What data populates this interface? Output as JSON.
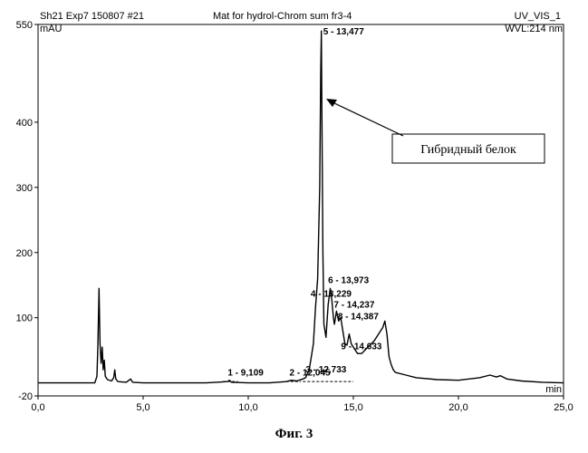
{
  "header": {
    "left": "Sh21 Exp7 150807 #21",
    "center": "Mat for hydrol-Chrom sum fr3-4",
    "right": "UV_VIS_1",
    "right2": "WVL:214 nm"
  },
  "caption": "Фиг. 3",
  "chart_data": {
    "type": "line",
    "ylabel": "mAU",
    "xlabel": "min",
    "xlim": [
      0,
      25
    ],
    "ylim": [
      -20,
      550
    ],
    "x_ticks": [
      0,
      5,
      10,
      15,
      20,
      25
    ],
    "x_tick_labels": [
      "0,0",
      "5,0",
      "10,0",
      "15,0",
      "20,0",
      "25,0"
    ],
    "y_ticks": [
      -20,
      100,
      200,
      300,
      400,
      550
    ],
    "y_tick_labels": [
      "-20",
      "100",
      "200",
      "300",
      "400",
      "550"
    ],
    "series": [
      {
        "x": [
          0,
          2.7,
          2.8,
          2.85,
          2.9,
          2.95,
          3.0,
          3.05,
          3.1,
          3.15,
          3.2,
          3.3,
          3.5,
          3.6,
          3.65,
          3.7,
          3.8,
          4.2,
          4.4,
          4.5,
          5.0,
          6.0,
          7.0,
          8.0,
          8.5,
          9.0,
          9.11,
          9.2,
          10.0,
          11.0,
          11.8,
          12.05,
          12.3,
          12.6,
          12.73,
          12.9,
          13.1,
          13.2,
          13.3,
          13.4,
          13.45,
          13.477,
          13.5,
          13.55,
          13.6,
          13.7,
          13.8,
          13.9,
          13.973,
          14.05,
          14.1,
          14.2,
          14.3,
          14.4,
          14.5,
          14.6,
          14.7,
          14.8,
          14.9,
          15.0,
          15.2,
          15.4,
          15.6,
          15.8,
          16.0,
          16.2,
          16.4,
          16.5,
          16.6,
          16.7,
          16.8,
          16.9,
          17.0,
          17.5,
          18.0,
          19.0,
          20.0,
          21.0,
          21.5,
          21.8,
          22.0,
          22.3,
          23.0,
          24.0,
          25.0
        ],
        "y": [
          0,
          0,
          10,
          60,
          145,
          60,
          30,
          55,
          20,
          35,
          10,
          5,
          3,
          8,
          20,
          6,
          2,
          1,
          6,
          1,
          0,
          0,
          0,
          0,
          1,
          2,
          4,
          1,
          0,
          0,
          2,
          4,
          3,
          6,
          8,
          20,
          60,
          115,
          160,
          300,
          480,
          540,
          430,
          200,
          90,
          70,
          120,
          145,
          128,
          100,
          90,
          110,
          95,
          100,
          80,
          60,
          58,
          75,
          60,
          55,
          45,
          45,
          52,
          58,
          65,
          75,
          85,
          95,
          75,
          40,
          28,
          20,
          16,
          12,
          8,
          5,
          4,
          8,
          12,
          9,
          11,
          6,
          3,
          1,
          0
        ]
      }
    ],
    "peak_labels": [
      {
        "text": "1 - 9,109",
        "x": 9.11,
        "y": 4
      },
      {
        "text": "2 - 12,045",
        "x": 12.05,
        "y": 4
      },
      {
        "text": "3 - 12,733",
        "x": 12.73,
        "y": 8
      },
      {
        "text": "4 - 13,229",
        "x": 13.23,
        "y": 125
      },
      {
        "text": "5 - 13,477",
        "x": 13.48,
        "y": 540
      },
      {
        "text": "6 - 13,973",
        "x": 13.97,
        "y": 145
      },
      {
        "text": "7 - 14,237",
        "x": 14.24,
        "y": 110
      },
      {
        "text": "8 - 14,387",
        "x": 14.39,
        "y": 100
      },
      {
        "text": "9 - 14,633",
        "x": 14.63,
        "y": 60
      }
    ],
    "annotations": [
      {
        "text": "Гибридный белок",
        "points_to_x": 13.477,
        "points_to_y": 430
      }
    ]
  }
}
